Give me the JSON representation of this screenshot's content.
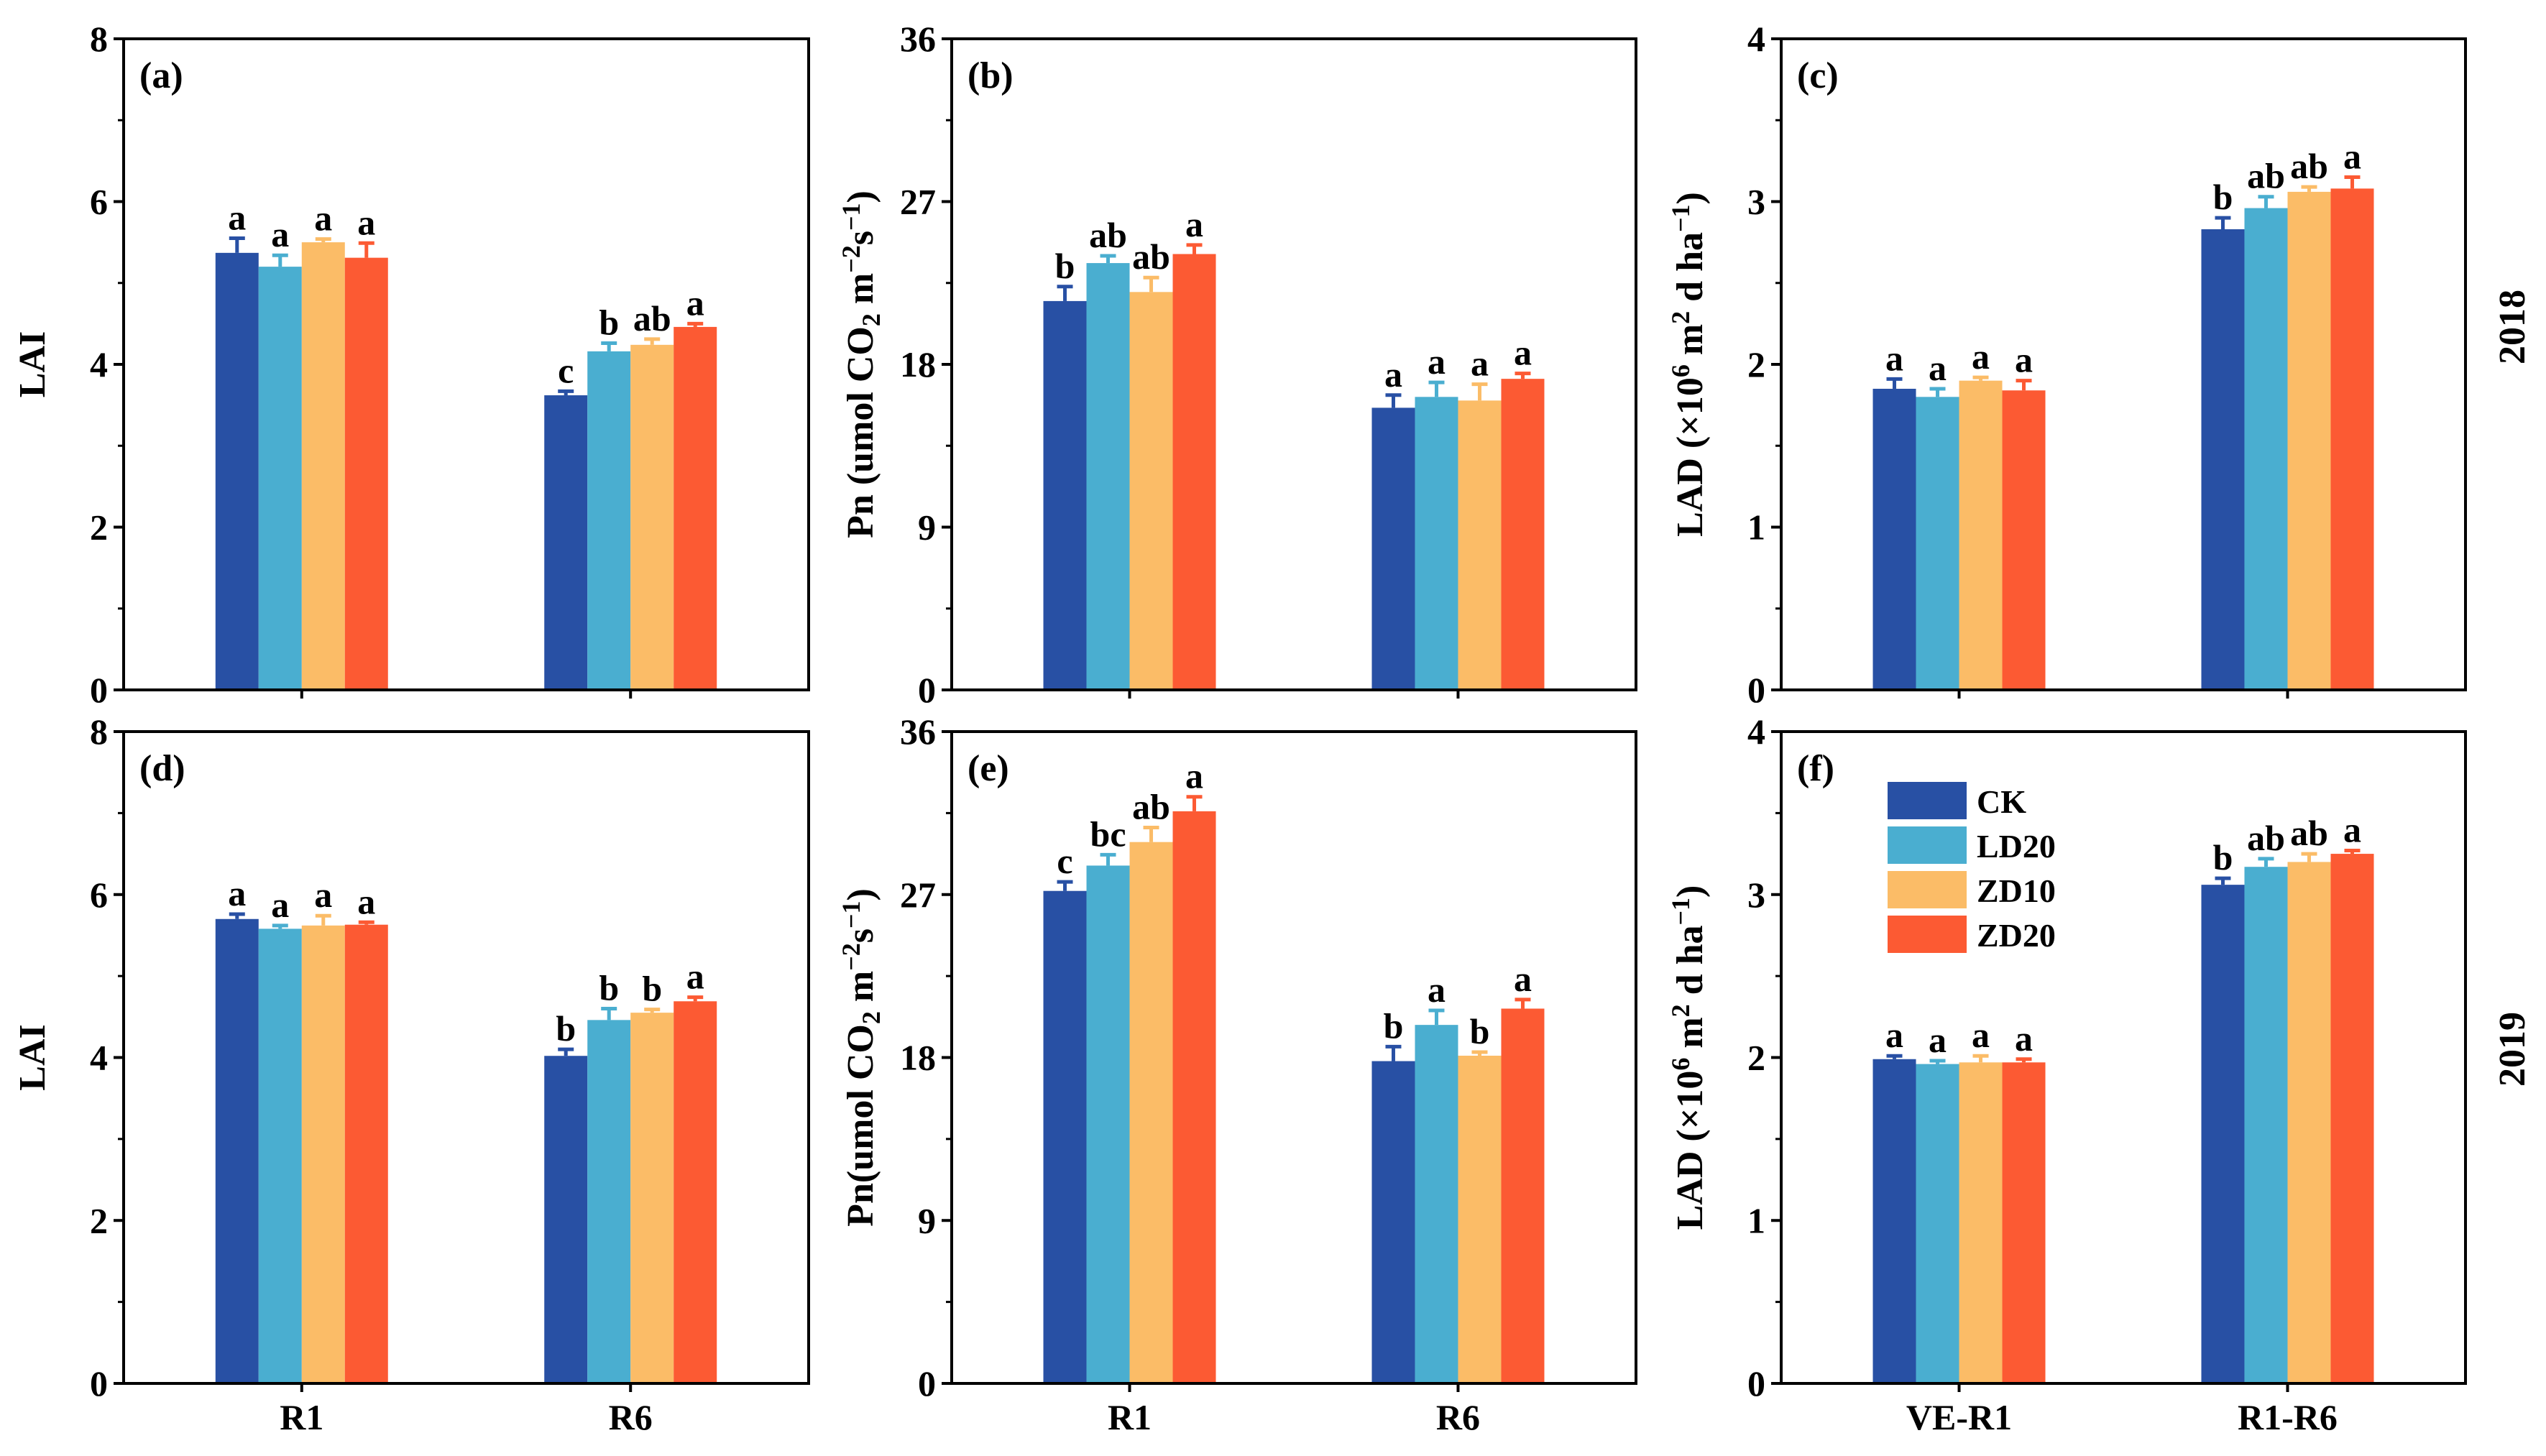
{
  "series_colors": {
    "CK": "#2850a4",
    "LD20": "#4aaed0",
    "ZD10": "#fbbc67",
    "ZD20": "#fc5a33"
  },
  "legend": {
    "items": [
      "CK",
      "LD20",
      "ZD10",
      "ZD20"
    ],
    "placement": "top-left of panel (f)"
  },
  "row_labels": [
    "2018",
    "2019"
  ],
  "chart_data": [
    {
      "type": "bar",
      "panel": "(a)",
      "ylabel": "LAI",
      "ylim": [
        0,
        8
      ],
      "yticks": [
        "0",
        "2",
        "4",
        "6",
        "8"
      ],
      "categories": [
        "R1",
        "R6"
      ],
      "show_xticklabels": false,
      "series": [
        {
          "name": "CK",
          "values": [
            5.37,
            3.62
          ],
          "errors": [
            0.18,
            0.05
          ],
          "letters": [
            "a",
            "c"
          ]
        },
        {
          "name": "LD20",
          "values": [
            5.2,
            4.16
          ],
          "errors": [
            0.14,
            0.1
          ],
          "letters": [
            "a",
            "b"
          ]
        },
        {
          "name": "ZD10",
          "values": [
            5.5,
            4.24
          ],
          "errors": [
            0.04,
            0.07
          ],
          "letters": [
            "a",
            "ab"
          ]
        },
        {
          "name": "ZD20",
          "values": [
            5.31,
            4.46
          ],
          "errors": [
            0.18,
            0.04
          ],
          "letters": [
            "a",
            "a"
          ]
        }
      ]
    },
    {
      "type": "bar",
      "panel": "(b)",
      "ylabel_parts": [
        "Pn (umol CO",
        "2",
        " m",
        "−2",
        "s",
        "−1",
        ")"
      ],
      "ylim": [
        0,
        36
      ],
      "yticks": [
        "0",
        "9",
        "18",
        "27",
        "36"
      ],
      "categories": [
        "R1",
        "R6"
      ],
      "show_xticklabels": false,
      "series": [
        {
          "name": "CK",
          "values": [
            21.5,
            15.6
          ],
          "errors": [
            0.8,
            0.7
          ],
          "letters": [
            "b",
            "a"
          ]
        },
        {
          "name": "LD20",
          "values": [
            23.6,
            16.2
          ],
          "errors": [
            0.4,
            0.8
          ],
          "letters": [
            "ab",
            "a"
          ]
        },
        {
          "name": "ZD10",
          "values": [
            22.0,
            16.0
          ],
          "errors": [
            0.8,
            0.9
          ],
          "letters": [
            "ab",
            "a"
          ]
        },
        {
          "name": "ZD20",
          "values": [
            24.1,
            17.2
          ],
          "errors": [
            0.5,
            0.3
          ],
          "letters": [
            "a",
            "a"
          ]
        }
      ]
    },
    {
      "type": "bar",
      "panel": "(c)",
      "ylabel_parts": [
        "LAD (×10",
        "6",
        " m",
        "2",
        " d ha",
        "−1",
        ")"
      ],
      "ylim": [
        0,
        4
      ],
      "yticks": [
        "0",
        "1",
        "2",
        "3",
        "4"
      ],
      "categories": [
        "VE-R1",
        "R1-R6"
      ],
      "show_xticklabels": false,
      "series": [
        {
          "name": "CK",
          "values": [
            1.85,
            2.83
          ],
          "errors": [
            0.06,
            0.07
          ],
          "letters": [
            "a",
            "b"
          ]
        },
        {
          "name": "LD20",
          "values": [
            1.8,
            2.96
          ],
          "errors": [
            0.05,
            0.07
          ],
          "letters": [
            "a",
            "ab"
          ]
        },
        {
          "name": "ZD10",
          "values": [
            1.9,
            3.06
          ],
          "errors": [
            0.02,
            0.03
          ],
          "letters": [
            "a",
            "ab"
          ]
        },
        {
          "name": "ZD20",
          "values": [
            1.84,
            3.08
          ],
          "errors": [
            0.06,
            0.07
          ],
          "letters": [
            "a",
            "a"
          ]
        }
      ]
    },
    {
      "type": "bar",
      "panel": "(d)",
      "ylabel": "LAI",
      "ylim": [
        0,
        8
      ],
      "yticks": [
        "0",
        "2",
        "4",
        "6",
        "8"
      ],
      "categories": [
        "R1",
        "R6"
      ],
      "show_xticklabels": true,
      "series": [
        {
          "name": "CK",
          "values": [
            5.7,
            4.02
          ],
          "errors": [
            0.06,
            0.08
          ],
          "letters": [
            "a",
            "b"
          ]
        },
        {
          "name": "LD20",
          "values": [
            5.58,
            4.46
          ],
          "errors": [
            0.04,
            0.14
          ],
          "letters": [
            "a",
            "b"
          ]
        },
        {
          "name": "ZD10",
          "values": [
            5.62,
            4.55
          ],
          "errors": [
            0.12,
            0.04
          ],
          "letters": [
            "a",
            "b"
          ]
        },
        {
          "name": "ZD20",
          "values": [
            5.63,
            4.69
          ],
          "errors": [
            0.03,
            0.05
          ],
          "letters": [
            "a",
            "a"
          ]
        }
      ]
    },
    {
      "type": "bar",
      "panel": "(e)",
      "ylabel_parts": [
        "Pn(umol CO",
        "2",
        " m",
        "−2",
        "s",
        "−1",
        ")"
      ],
      "ylim": [
        0,
        36
      ],
      "yticks": [
        "0",
        "9",
        "18",
        "27",
        "36"
      ],
      "categories": [
        "R1",
        "R6"
      ],
      "show_xticklabels": true,
      "series": [
        {
          "name": "CK",
          "values": [
            27.2,
            17.8
          ],
          "errors": [
            0.5,
            0.8
          ],
          "letters": [
            "c",
            "b"
          ]
        },
        {
          "name": "LD20",
          "values": [
            28.6,
            19.8
          ],
          "errors": [
            0.6,
            0.8
          ],
          "letters": [
            "bc",
            "a"
          ]
        },
        {
          "name": "ZD10",
          "values": [
            29.9,
            18.1
          ],
          "errors": [
            0.8,
            0.2
          ],
          "letters": [
            "ab",
            "b"
          ]
        },
        {
          "name": "ZD20",
          "values": [
            31.6,
            20.7
          ],
          "errors": [
            0.8,
            0.5
          ],
          "letters": [
            "a",
            "a"
          ]
        }
      ]
    },
    {
      "type": "bar",
      "panel": "(f)",
      "ylabel_parts": [
        "LAD (×10",
        "6",
        " m",
        "2",
        " d ha",
        "−1",
        ")"
      ],
      "ylim": [
        0,
        4
      ],
      "yticks": [
        "0",
        "1",
        "2",
        "3",
        "4"
      ],
      "categories": [
        "VE-R1",
        "R1-R6"
      ],
      "show_xticklabels": true,
      "series": [
        {
          "name": "CK",
          "values": [
            1.99,
            3.06
          ],
          "errors": [
            0.02,
            0.04
          ],
          "letters": [
            "a",
            "b"
          ]
        },
        {
          "name": "LD20",
          "values": [
            1.96,
            3.17
          ],
          "errors": [
            0.02,
            0.05
          ],
          "letters": [
            "a",
            "ab"
          ]
        },
        {
          "name": "ZD10",
          "values": [
            1.97,
            3.2
          ],
          "errors": [
            0.04,
            0.05
          ],
          "letters": [
            "a",
            "ab"
          ]
        },
        {
          "name": "ZD20",
          "values": [
            1.97,
            3.25
          ],
          "errors": [
            0.02,
            0.02
          ],
          "letters": [
            "a",
            "a"
          ]
        }
      ]
    }
  ]
}
